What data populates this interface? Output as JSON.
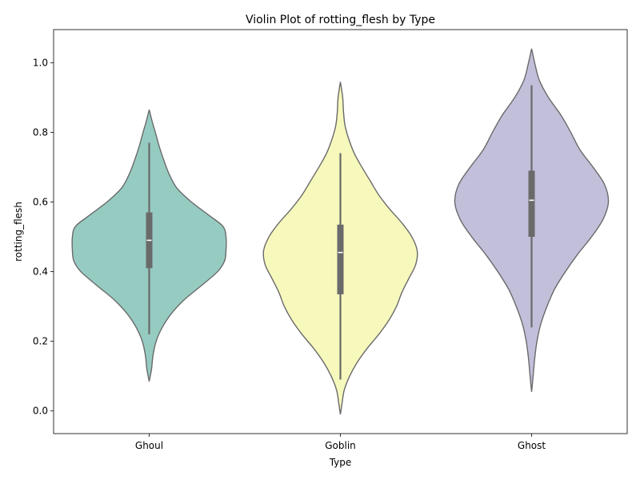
{
  "chart_data": {
    "type": "violin",
    "title": "Violin Plot of rotting_flesh by Type",
    "xlabel": "Type",
    "ylabel": "rotting_flesh",
    "ylim": [
      -0.065,
      1.095
    ],
    "yticks": [
      "0.0",
      "0.2",
      "0.4",
      "0.6",
      "0.8",
      "1.0"
    ],
    "categories": [
      "Ghoul",
      "Goblin",
      "Ghost"
    ],
    "colors": [
      "#96cbc2",
      "#f7f8bc",
      "#c2bfda"
    ],
    "line_color": "#6a6a6a",
    "box_color": "#6a6a6a",
    "median_color": "#ffffff",
    "series": [
      {
        "category": "Ghoul",
        "stats": {
          "whisker_low": 0.22,
          "q1": 0.41,
          "median": 0.49,
          "q3": 0.57,
          "whisker_high": 0.77
        },
        "density": [
          [
            0.085,
            0.0
          ],
          [
            0.12,
            0.03
          ],
          [
            0.16,
            0.05
          ],
          [
            0.2,
            0.09
          ],
          [
            0.24,
            0.17
          ],
          [
            0.28,
            0.29
          ],
          [
            0.32,
            0.46
          ],
          [
            0.36,
            0.68
          ],
          [
            0.4,
            0.89
          ],
          [
            0.43,
            0.98
          ],
          [
            0.46,
            1.0
          ],
          [
            0.5,
            1.0
          ],
          [
            0.53,
            0.96
          ],
          [
            0.56,
            0.79
          ],
          [
            0.6,
            0.55
          ],
          [
            0.64,
            0.36
          ],
          [
            0.68,
            0.26
          ],
          [
            0.72,
            0.19
          ],
          [
            0.76,
            0.13
          ],
          [
            0.8,
            0.08
          ],
          [
            0.83,
            0.04
          ],
          [
            0.865,
            0.0
          ]
        ]
      },
      {
        "category": "Goblin",
        "stats": {
          "whisker_low": 0.09,
          "q1": 0.335,
          "median": 0.455,
          "q3": 0.535,
          "whisker_high": 0.74
        },
        "density": [
          [
            -0.01,
            0.0
          ],
          [
            0.02,
            0.02
          ],
          [
            0.06,
            0.05
          ],
          [
            0.1,
            0.12
          ],
          [
            0.14,
            0.22
          ],
          [
            0.18,
            0.35
          ],
          [
            0.22,
            0.5
          ],
          [
            0.26,
            0.63
          ],
          [
            0.3,
            0.73
          ],
          [
            0.34,
            0.8
          ],
          [
            0.38,
            0.89
          ],
          [
            0.42,
            0.98
          ],
          [
            0.46,
            1.0
          ],
          [
            0.5,
            0.93
          ],
          [
            0.54,
            0.8
          ],
          [
            0.58,
            0.64
          ],
          [
            0.62,
            0.5
          ],
          [
            0.66,
            0.39
          ],
          [
            0.7,
            0.28
          ],
          [
            0.74,
            0.18
          ],
          [
            0.78,
            0.11
          ],
          [
            0.82,
            0.06
          ],
          [
            0.86,
            0.04
          ],
          [
            0.9,
            0.03
          ],
          [
            0.945,
            0.0
          ]
        ]
      },
      {
        "category": "Ghost",
        "stats": {
          "whisker_low": 0.24,
          "q1": 0.5,
          "median": 0.605,
          "q3": 0.69,
          "whisker_high": 0.935
        },
        "density": [
          [
            0.055,
            0.0
          ],
          [
            0.1,
            0.02
          ],
          [
            0.15,
            0.04
          ],
          [
            0.2,
            0.07
          ],
          [
            0.25,
            0.12
          ],
          [
            0.3,
            0.2
          ],
          [
            0.35,
            0.3
          ],
          [
            0.4,
            0.44
          ],
          [
            0.45,
            0.6
          ],
          [
            0.5,
            0.78
          ],
          [
            0.55,
            0.93
          ],
          [
            0.6,
            1.0
          ],
          [
            0.65,
            0.95
          ],
          [
            0.7,
            0.8
          ],
          [
            0.75,
            0.63
          ],
          [
            0.8,
            0.51
          ],
          [
            0.85,
            0.38
          ],
          [
            0.9,
            0.22
          ],
          [
            0.95,
            0.1
          ],
          [
            1.0,
            0.04
          ],
          [
            1.04,
            0.0
          ]
        ]
      }
    ]
  }
}
